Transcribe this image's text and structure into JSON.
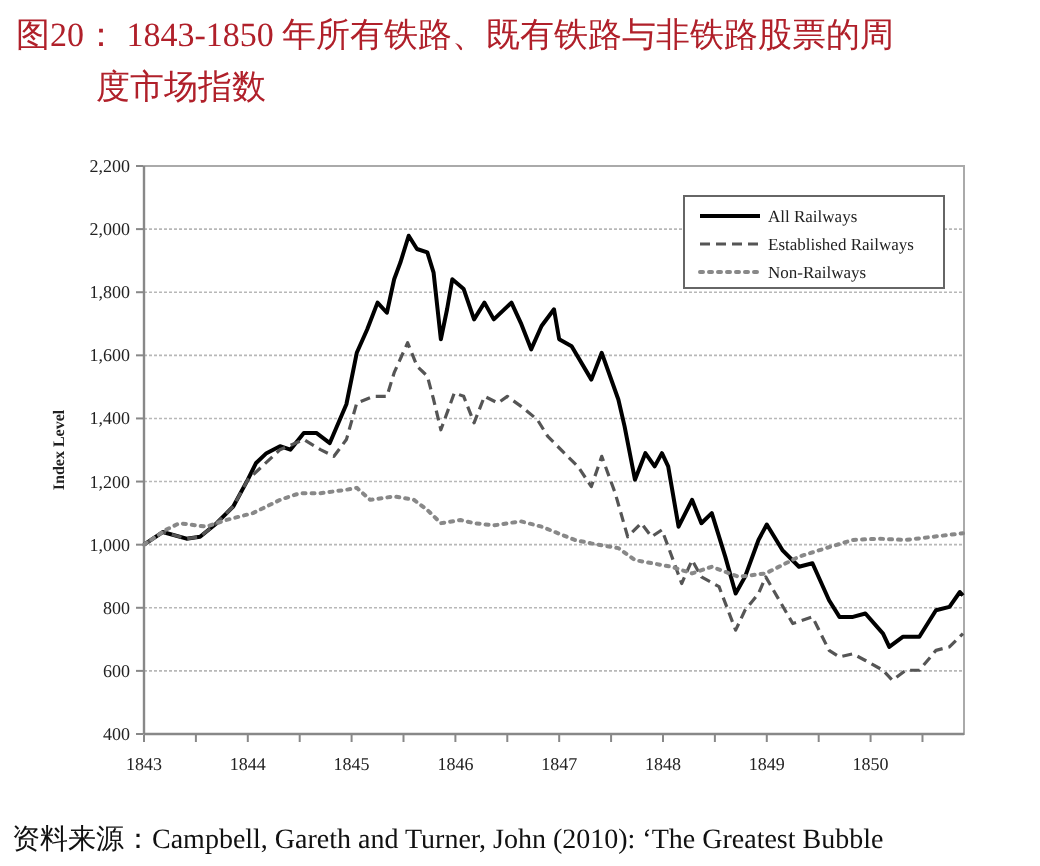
{
  "chart_data": {
    "type": "line",
    "title": "图20：  1843-1850 年所有铁路、既有铁路与非铁路股票的周度市场指数",
    "ylabel": "Index Level",
    "annotations": [
      "资料来源：Campbell, Gareth and Turner, John (2010): ‘The Greatest Bubble"
    ],
    "xlim": [
      1843,
      1850.9
    ],
    "xticks": [
      1843,
      {
        "value": 1843.5,
        "label": null
      },
      1844,
      {
        "value": 1844.5,
        "label": null
      },
      1845,
      {
        "value": 1845.5,
        "label": null
      },
      1846,
      {
        "value": 1846.5,
        "label": null
      },
      1847,
      {
        "value": 1847.5,
        "label": null
      },
      1848,
      {
        "value": 1848.5,
        "label": null
      },
      1849,
      {
        "value": 1849.5,
        "label": null
      },
      1850,
      {
        "value": 1850.5,
        "label": null
      }
    ],
    "ylim": [
      400,
      2200
    ],
    "yticks": [
      400,
      600,
      800,
      {
        "value": 1000,
        "label": "1,000"
      },
      {
        "value": 1200,
        "label": "1,200"
      },
      {
        "value": 1400,
        "label": "1,400"
      },
      {
        "value": 1600,
        "label": "1,600"
      },
      {
        "value": 1800,
        "label": "1,800"
      },
      {
        "value": 2000,
        "label": "2,000"
      },
      {
        "value": 2200,
        "label": "2,200"
      }
    ],
    "grid": "y",
    "legend": "top right",
    "series": [
      {
        "name": "All Railways",
        "color": "#000000",
        "line_style": "solid",
        "x": [
          1843.0,
          1843.18,
          1843.41,
          1843.54,
          1843.7,
          1843.86,
          1844.0,
          1844.08,
          1844.18,
          1844.31,
          1844.41,
          1844.54,
          1844.66,
          1844.79,
          1844.95,
          1845.05,
          1845.15,
          1845.25,
          1845.34,
          1845.41,
          1845.47,
          1845.55,
          1845.63,
          1845.73,
          1845.79,
          1845.86,
          1845.92,
          1845.97,
          1846.08,
          1846.18,
          1846.28,
          1846.37,
          1846.54,
          1846.63,
          1846.73,
          1846.83,
          1846.95,
          1847.0,
          1847.12,
          1847.31,
          1847.41,
          1847.57,
          1847.63,
          1847.73,
          1847.83,
          1847.92,
          1847.99,
          1848.05,
          1848.15,
          1848.28,
          1848.37,
          1848.47,
          1848.6,
          1848.7,
          1848.79,
          1848.92,
          1849.0,
          1849.15,
          1849.31,
          1849.44,
          1849.6,
          1849.7,
          1849.83,
          1849.95,
          1850.12,
          1850.18,
          1850.31,
          1850.47,
          1850.63,
          1850.76,
          1850.86,
          1850.89
        ],
        "values": [
          1000,
          1040,
          1019,
          1025,
          1068,
          1121,
          1206,
          1259,
          1290,
          1312,
          1301,
          1354,
          1354,
          1322,
          1445,
          1608,
          1682,
          1767,
          1735,
          1841,
          1894,
          1979,
          1937,
          1926,
          1862,
          1651,
          1746,
          1841,
          1810,
          1714,
          1767,
          1714,
          1767,
          1703,
          1619,
          1693,
          1746,
          1651,
          1629,
          1523,
          1608,
          1460,
          1375,
          1206,
          1290,
          1248,
          1290,
          1248,
          1057,
          1142,
          1068,
          1100,
          962,
          845,
          898,
          1015,
          1064,
          983,
          930,
          941,
          824,
          771,
          771,
          782,
          718,
          676,
          708,
          708,
          792,
          803,
          850,
          839
        ]
      },
      {
        "name": "Established Railways",
        "color": "#555555",
        "line_style": "dashed",
        "x": [
          1843.0,
          1843.18,
          1843.41,
          1843.54,
          1843.7,
          1843.86,
          1844.0,
          1844.31,
          1844.54,
          1844.7,
          1844.83,
          1844.95,
          1845.05,
          1845.21,
          1845.34,
          1845.41,
          1845.54,
          1845.63,
          1845.73,
          1845.79,
          1845.86,
          1845.99,
          1846.08,
          1846.18,
          1846.28,
          1846.41,
          1846.5,
          1846.63,
          1846.79,
          1846.89,
          1847.05,
          1847.18,
          1847.31,
          1847.41,
          1847.54,
          1847.66,
          1847.79,
          1847.89,
          1847.99,
          1848.05,
          1848.18,
          1848.28,
          1848.37,
          1848.54,
          1848.7,
          1848.79,
          1848.92,
          1848.99,
          1849.12,
          1849.25,
          1849.44,
          1849.6,
          1849.7,
          1849.83,
          1849.95,
          1850.12,
          1850.21,
          1850.34,
          1850.47,
          1850.63,
          1850.76,
          1850.89
        ],
        "values": [
          1000,
          1040,
          1019,
          1025,
          1068,
          1121,
          1206,
          1301,
          1333,
          1301,
          1280,
          1333,
          1449,
          1470,
          1470,
          1545,
          1640,
          1566,
          1534,
          1460,
          1364,
          1481,
          1470,
          1386,
          1470,
          1449,
          1470,
          1439,
          1396,
          1343,
          1290,
          1248,
          1184,
          1280,
          1163,
          1025,
          1068,
          1025,
          1047,
          994,
          877,
          951,
          898,
          867,
          729,
          792,
          845,
          898,
          824,
          750,
          771,
          665,
          644,
          654,
          633,
          602,
          570,
          602,
          602,
          665,
          676,
          718
        ]
      },
      {
        "name": "Non-Railways",
        "color": "#888888",
        "line_style": "dotted",
        "x": [
          1843.0,
          1843.21,
          1843.34,
          1843.6,
          1843.79,
          1844.05,
          1844.31,
          1844.5,
          1844.7,
          1844.95,
          1845.05,
          1845.18,
          1845.41,
          1845.6,
          1845.73,
          1845.86,
          1846.05,
          1846.18,
          1846.37,
          1846.63,
          1846.83,
          1846.99,
          1847.15,
          1847.31,
          1847.57,
          1847.73,
          1848.08,
          1848.28,
          1848.47,
          1848.73,
          1848.99,
          1849.31,
          1849.57,
          1849.83,
          1850.08,
          1850.34,
          1850.6,
          1850.89
        ],
        "values": [
          1000,
          1047,
          1068,
          1057,
          1078,
          1100,
          1142,
          1163,
          1163,
          1174,
          1180,
          1142,
          1153,
          1142,
          1110,
          1068,
          1078,
          1068,
          1061,
          1074,
          1057,
          1036,
          1015,
          1004,
          989,
          951,
          930,
          909,
          930,
          898,
          909,
          962,
          989,
          1015,
          1019,
          1015,
          1025,
          1036
        ]
      }
    ]
  }
}
